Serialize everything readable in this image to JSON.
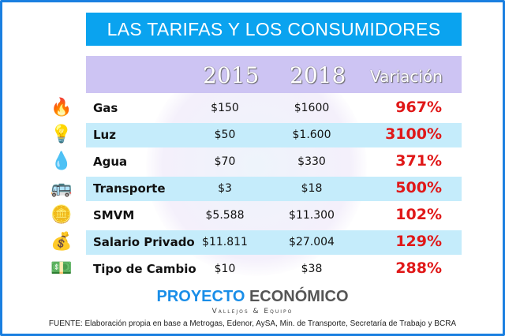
{
  "title": "LAS TARIFAS Y LOS CONSUMIDORES",
  "chart_data": {
    "type": "table",
    "columns": [
      "2015",
      "2018",
      "Variación"
    ],
    "rows": [
      {
        "label": "Gas",
        "icon": "fire-icon",
        "y2015": "$150",
        "y2018": "$1600",
        "variation": "967%"
      },
      {
        "label": "Luz",
        "icon": "lightbulb-icon",
        "y2015": "$50",
        "y2018": "$1.600",
        "variation": "3100%"
      },
      {
        "label": "Agua",
        "icon": "water-drop-icon",
        "y2015": "$70",
        "y2018": "$330",
        "variation": "371%"
      },
      {
        "label": "Transporte",
        "icon": "bus-icon",
        "y2015": "$3",
        "y2018": "$18",
        "variation": "500%"
      },
      {
        "label": "SMVM",
        "icon": "coins-stack-icon",
        "y2015": "$5.588",
        "y2018": "$11.300",
        "variation": "102%"
      },
      {
        "label": "Salario Privado",
        "icon": "gold-coins-icon",
        "y2015": "$11.811",
        "y2018": "$27.004",
        "variation": "129%"
      },
      {
        "label": "Tipo de Cambio",
        "icon": "dollar-bill-icon",
        "y2015": "$10",
        "y2018": "$38",
        "variation": "288%"
      }
    ]
  },
  "brand": {
    "part1": "PROYECTO",
    "part2": "ECONÓMICO",
    "subtitle": "Vallejos & Equipo"
  },
  "source": "FUENTE: Elaboración propia en base a Metrogas, Edenor, AySA, Min. de Transporte, Secretaría de Trabajo y BCRA",
  "colors": {
    "title_bg": "#0aa3ef",
    "header_bg": "#cdc4f3",
    "alt_row": "#c5ecfb",
    "variation": "#e01818",
    "frame": "#1a7fe0"
  }
}
